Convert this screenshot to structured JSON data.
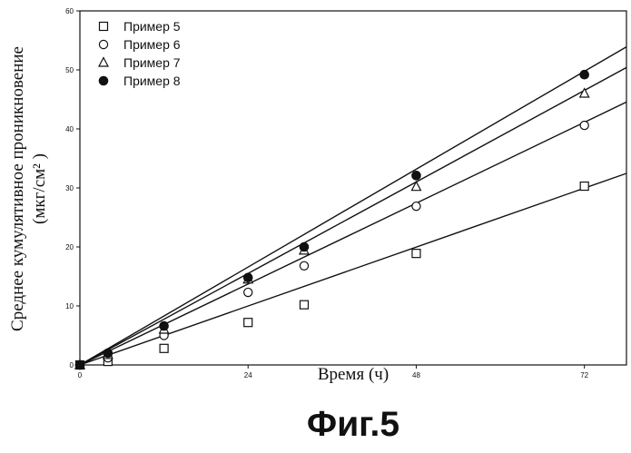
{
  "chart_data": {
    "type": "scatter",
    "title": "",
    "xlabel": "Время (ч)",
    "ylabel": "Среднее кумулятивное проникновение",
    "ylabel_unit": "(мкг/см² )",
    "xlim": [
      0,
      78
    ],
    "ylim": [
      0,
      60
    ],
    "xticks": [
      0,
      24,
      48,
      72
    ],
    "yticks": [
      0,
      10,
      20,
      30,
      40,
      50,
      60
    ],
    "grid": false,
    "legend_position": "top-left",
    "figure_caption": "Фиг.5",
    "series": [
      {
        "name": "Пример 5",
        "marker": "open-square",
        "x": [
          0,
          4,
          12,
          24,
          32,
          48,
          72
        ],
        "y": [
          0,
          0.6,
          2.8,
          7.2,
          10.2,
          18.9,
          30.3
        ],
        "trend": {
          "slope": 0.42,
          "intercept": -0.3
        }
      },
      {
        "name": "Пример 6",
        "marker": "open-circle",
        "x": [
          0,
          4,
          12,
          24,
          32,
          48,
          72
        ],
        "y": [
          0,
          1.2,
          5.0,
          12.3,
          16.8,
          26.9,
          40.6
        ],
        "trend": {
          "slope": 0.575,
          "intercept": -0.3
        }
      },
      {
        "name": "Пример 7",
        "marker": "open-triangle",
        "x": [
          0,
          4,
          12,
          24,
          32,
          48,
          72
        ],
        "y": [
          0,
          1.7,
          6.0,
          14.5,
          19.4,
          30.2,
          46.0
        ],
        "trend": {
          "slope": 0.65,
          "intercept": -0.3
        }
      },
      {
        "name": "Пример 8",
        "marker": "filled-circle",
        "x": [
          0,
          4,
          12,
          24,
          32,
          48,
          72
        ],
        "y": [
          0,
          2.0,
          6.6,
          14.8,
          20.0,
          32.1,
          49.2
        ],
        "trend": {
          "slope": 0.695,
          "intercept": -0.3
        }
      }
    ]
  }
}
